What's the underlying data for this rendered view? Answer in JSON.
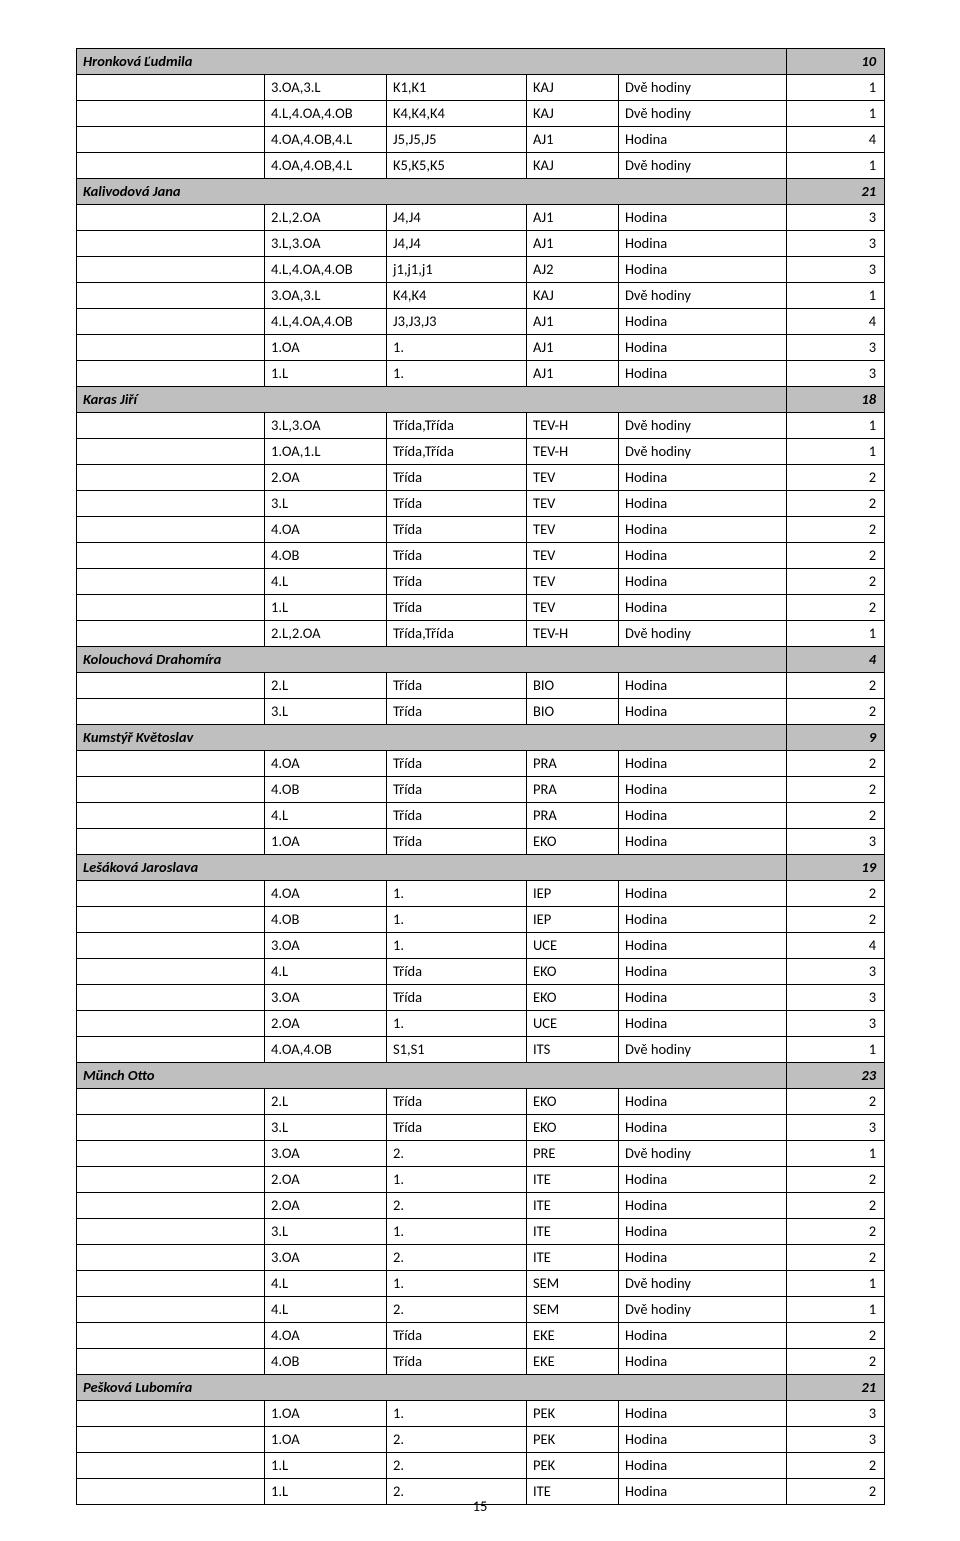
{
  "page_number": "15",
  "columns": [
    "col1",
    "col2",
    "col3",
    "col4",
    "col5",
    "col6"
  ],
  "rows": [
    {
      "type": "header",
      "name": "Hronková Ľudmila",
      "total": "10"
    },
    {
      "c1": "",
      "c2": "3.OA,3.L",
      "c3": "K1,K1",
      "c4": "KAJ",
      "c5": "Dvě hodiny",
      "c6": "1"
    },
    {
      "c1": "",
      "c2": "4.L,4.OA,4.OB",
      "c3": "K4,K4,K4",
      "c4": "KAJ",
      "c5": "Dvě hodiny",
      "c6": "1"
    },
    {
      "c1": "",
      "c2": "4.OA,4.OB,4.L",
      "c3": "J5,J5,J5",
      "c4": "AJ1",
      "c5": "Hodina",
      "c6": "4"
    },
    {
      "c1": "",
      "c2": "4.OA,4.OB,4.L",
      "c3": "K5,K5,K5",
      "c4": "KAJ",
      "c5": "Dvě hodiny",
      "c6": "1"
    },
    {
      "type": "header",
      "name": "Kalivodová Jana",
      "total": "21"
    },
    {
      "c1": "",
      "c2": "2.L,2.OA",
      "c3": "J4,J4",
      "c4": "AJ1",
      "c5": "Hodina",
      "c6": "3"
    },
    {
      "c1": "",
      "c2": "3.L,3.OA",
      "c3": "J4,J4",
      "c4": "AJ1",
      "c5": "Hodina",
      "c6": "3"
    },
    {
      "c1": "",
      "c2": "4.L,4.OA,4.OB",
      "c3": "j1,j1,j1",
      "c4": "AJ2",
      "c5": "Hodina",
      "c6": "3"
    },
    {
      "c1": "",
      "c2": "3.OA,3.L",
      "c3": "K4,K4",
      "c4": "KAJ",
      "c5": "Dvě hodiny",
      "c6": "1"
    },
    {
      "c1": "",
      "c2": "4.L,4.OA,4.OB",
      "c3": "J3,J3,J3",
      "c4": "AJ1",
      "c5": "Hodina",
      "c6": "4"
    },
    {
      "c1": "",
      "c2": "1.OA",
      "c3": "1.",
      "c4": "AJ1",
      "c5": "Hodina",
      "c6": "3"
    },
    {
      "c1": "",
      "c2": "1.L",
      "c3": "1.",
      "c4": "AJ1",
      "c5": "Hodina",
      "c6": "3"
    },
    {
      "type": "header",
      "name": "Karas Jiří",
      "total": "18"
    },
    {
      "c1": "",
      "c2": "3.L,3.OA",
      "c3": "Třída,Třída",
      "c4": "TEV-H",
      "c5": "Dvě hodiny",
      "c6": "1"
    },
    {
      "c1": "",
      "c2": "1.OA,1.L",
      "c3": "Třída,Třída",
      "c4": "TEV-H",
      "c5": "Dvě hodiny",
      "c6": "1"
    },
    {
      "c1": "",
      "c2": "2.OA",
      "c3": "Třída",
      "c4": "TEV",
      "c5": "Hodina",
      "c6": "2"
    },
    {
      "c1": "",
      "c2": "3.L",
      "c3": "Třída",
      "c4": "TEV",
      "c5": "Hodina",
      "c6": "2"
    },
    {
      "c1": "",
      "c2": "4.OA",
      "c3": "Třída",
      "c4": "TEV",
      "c5": "Hodina",
      "c6": "2"
    },
    {
      "c1": "",
      "c2": "4.OB",
      "c3": "Třída",
      "c4": "TEV",
      "c5": "Hodina",
      "c6": "2"
    },
    {
      "c1": "",
      "c2": "4.L",
      "c3": "Třída",
      "c4": "TEV",
      "c5": "Hodina",
      "c6": "2"
    },
    {
      "c1": "",
      "c2": "1.L",
      "c3": "Třída",
      "c4": "TEV",
      "c5": "Hodina",
      "c6": "2"
    },
    {
      "c1": "",
      "c2": "2.L,2.OA",
      "c3": "Třída,Třída",
      "c4": "TEV-H",
      "c5": "Dvě hodiny",
      "c6": "1"
    },
    {
      "type": "header",
      "name": "Kolouchová Drahomíra",
      "total": "4"
    },
    {
      "c1": "",
      "c2": "2.L",
      "c3": "Třída",
      "c4": "BIO",
      "c5": "Hodina",
      "c6": "2"
    },
    {
      "c1": "",
      "c2": "3.L",
      "c3": "Třída",
      "c4": "BIO",
      "c5": "Hodina",
      "c6": "2"
    },
    {
      "type": "header",
      "name": "Kumstýř Květoslav",
      "total": "9"
    },
    {
      "c1": "",
      "c2": "4.OA",
      "c3": "Třída",
      "c4": "PRA",
      "c5": "Hodina",
      "c6": "2"
    },
    {
      "c1": "",
      "c2": "4.OB",
      "c3": "Třída",
      "c4": "PRA",
      "c5": "Hodina",
      "c6": "2"
    },
    {
      "c1": "",
      "c2": "4.L",
      "c3": "Třída",
      "c4": "PRA",
      "c5": "Hodina",
      "c6": "2"
    },
    {
      "c1": "",
      "c2": "1.OA",
      "c3": "Třída",
      "c4": "EKO",
      "c5": "Hodina",
      "c6": "3"
    },
    {
      "type": "header",
      "name": "Lešáková Jaroslava",
      "total": "19"
    },
    {
      "c1": "",
      "c2": "4.OA",
      "c3": "1.",
      "c4": "IEP",
      "c5": "Hodina",
      "c6": "2"
    },
    {
      "c1": "",
      "c2": "4.OB",
      "c3": "1.",
      "c4": "IEP",
      "c5": "Hodina",
      "c6": "2"
    },
    {
      "c1": "",
      "c2": "3.OA",
      "c3": "1.",
      "c4": "UCE",
      "c5": "Hodina",
      "c6": "4"
    },
    {
      "c1": "",
      "c2": "4.L",
      "c3": "Třída",
      "c4": "EKO",
      "c5": "Hodina",
      "c6": "3"
    },
    {
      "c1": "",
      "c2": "3.OA",
      "c3": "Třída",
      "c4": "EKO",
      "c5": "Hodina",
      "c6": "3"
    },
    {
      "c1": "",
      "c2": "2.OA",
      "c3": "1.",
      "c4": "UCE",
      "c5": "Hodina",
      "c6": "3"
    },
    {
      "c1": "",
      "c2": "4.OA,4.OB",
      "c3": "S1,S1",
      "c4": "ITS",
      "c5": "Dvě hodiny",
      "c6": "1"
    },
    {
      "type": "header",
      "name": "Münch Otto",
      "total": "23"
    },
    {
      "c1": "",
      "c2": "2.L",
      "c3": "Třída",
      "c4": "EKO",
      "c5": "Hodina",
      "c6": "2"
    },
    {
      "c1": "",
      "c2": "3.L",
      "c3": "Třída",
      "c4": "EKO",
      "c5": "Hodina",
      "c6": "3"
    },
    {
      "c1": "",
      "c2": "3.OA",
      "c3": "2.",
      "c4": "PRE",
      "c5": "Dvě hodiny",
      "c6": "1"
    },
    {
      "c1": "",
      "c2": "2.OA",
      "c3": "1.",
      "c4": "ITE",
      "c5": "Hodina",
      "c6": "2"
    },
    {
      "c1": "",
      "c2": "2.OA",
      "c3": "2.",
      "c4": "ITE",
      "c5": "Hodina",
      "c6": "2"
    },
    {
      "c1": "",
      "c2": "3.L",
      "c3": "1.",
      "c4": "ITE",
      "c5": "Hodina",
      "c6": "2"
    },
    {
      "c1": "",
      "c2": "3.OA",
      "c3": "2.",
      "c4": "ITE",
      "c5": "Hodina",
      "c6": "2"
    },
    {
      "c1": "",
      "c2": "4.L",
      "c3": "1.",
      "c4": "SEM",
      "c5": "Dvě hodiny",
      "c6": "1"
    },
    {
      "c1": "",
      "c2": "4.L",
      "c3": "2.",
      "c4": "SEM",
      "c5": "Dvě hodiny",
      "c6": "1"
    },
    {
      "c1": "",
      "c2": "4.OA",
      "c3": "Třída",
      "c4": "EKE",
      "c5": "Hodina",
      "c6": "2"
    },
    {
      "c1": "",
      "c2": "4.OB",
      "c3": "Třída",
      "c4": "EKE",
      "c5": "Hodina",
      "c6": "2"
    },
    {
      "type": "header",
      "name": "Pešková Lubomíra",
      "total": "21"
    },
    {
      "c1": "",
      "c2": "1.OA",
      "c3": "1.",
      "c4": "PEK",
      "c5": "Hodina",
      "c6": "3"
    },
    {
      "c1": "",
      "c2": "1.OA",
      "c3": "2.",
      "c4": "PEK",
      "c5": "Hodina",
      "c6": "3"
    },
    {
      "c1": "",
      "c2": "1.L",
      "c3": "2.",
      "c4": "PEK",
      "c5": "Hodina",
      "c6": "2"
    },
    {
      "c1": "",
      "c2": "1.L",
      "c3": "2.",
      "c4": "ITE",
      "c5": "Hodina",
      "c6": "2"
    }
  ]
}
